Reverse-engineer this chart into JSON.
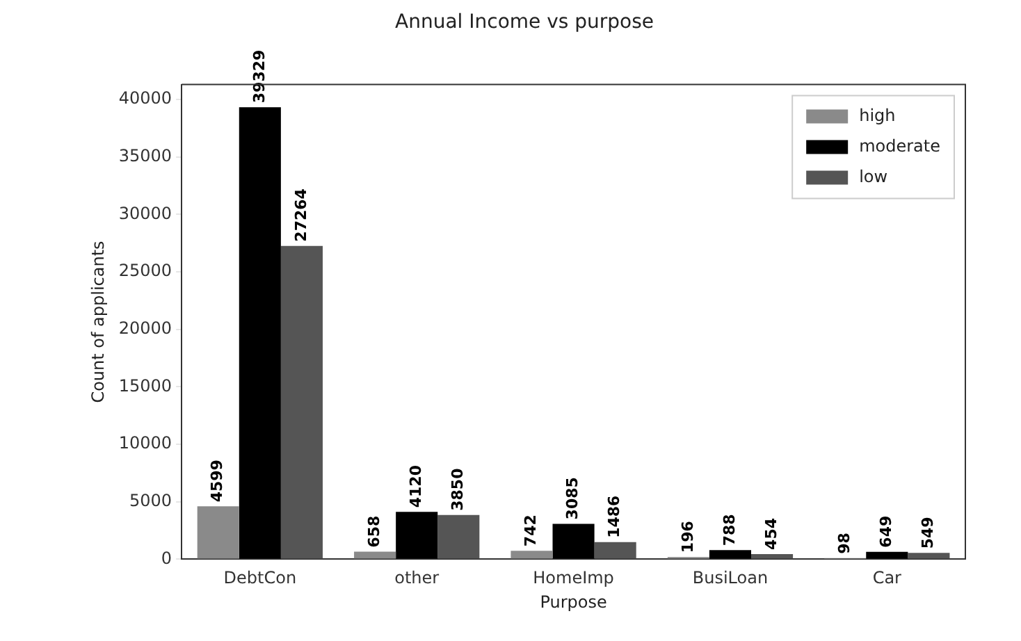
{
  "chart_data": {
    "type": "bar",
    "title": "Annual Income vs purpose",
    "xlabel": "Purpose",
    "ylabel": "Count of applicants",
    "categories": [
      "DebtCon",
      "other",
      "HomeImp",
      "BusiLoan",
      "Car"
    ],
    "series": [
      {
        "name": "high",
        "color": "#8a8a8a",
        "values": [
          4599,
          658,
          742,
          196,
          98
        ]
      },
      {
        "name": "moderate",
        "color": "#000000",
        "values": [
          39329,
          4120,
          3085,
          788,
          649
        ]
      },
      {
        "name": "low",
        "color": "#555555",
        "values": [
          27264,
          3850,
          1486,
          454,
          549
        ]
      }
    ],
    "ylim": [
      0,
      41300
    ],
    "yticks": [
      0,
      5000,
      10000,
      15000,
      20000,
      25000,
      30000,
      35000,
      40000
    ],
    "data_labels": true,
    "legend": "top right",
    "grid": false
  }
}
